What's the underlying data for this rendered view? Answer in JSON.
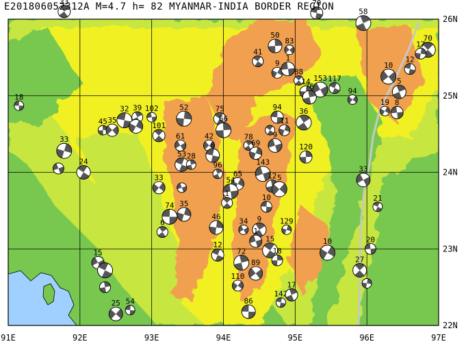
{
  "title": "E201806052312A M=4.7 h= 82 MYANMAR-INDIA BORDER REGION",
  "lon_labels": [
    "91E",
    "92E",
    "93E",
    "94E",
    "95E",
    "96E",
    "97E"
  ],
  "lat_labels": [
    "26N",
    "25N",
    "24N",
    "23N",
    "22N"
  ],
  "lon_range": [
    91,
    97
  ],
  "lat_range": [
    22,
    26
  ],
  "colors": {
    "sea": "#9fd0ff",
    "low": "#78c850",
    "mid": "#c8e640",
    "high": "#f0f020",
    "ridge": "#f0a050",
    "grid": "#000000",
    "river": "#c8c8c8"
  },
  "events": [
    {
      "id": "18",
      "lon": 91.15,
      "lat": 24.87
    },
    {
      "id": "33",
      "lon": 91.78,
      "lat": 26.1
    },
    {
      "id": "33",
      "lon": 91.78,
      "lat": 24.28
    },
    {
      "id": "",
      "lon": 91.7,
      "lat": 24.05
    },
    {
      "id": "24",
      "lon": 92.05,
      "lat": 24.0
    },
    {
      "id": "45",
      "lon": 92.32,
      "lat": 24.55
    },
    {
      "id": "35",
      "lon": 92.45,
      "lat": 24.55
    },
    {
      "id": "32",
      "lon": 92.62,
      "lat": 24.68
    },
    {
      "id": "39",
      "lon": 92.8,
      "lat": 24.72
    },
    {
      "id": "",
      "lon": 92.78,
      "lat": 24.6
    },
    {
      "id": "102",
      "lon": 93.0,
      "lat": 24.72
    },
    {
      "id": "101",
      "lon": 93.1,
      "lat": 24.48
    },
    {
      "id": "52",
      "lon": 93.45,
      "lat": 24.7
    },
    {
      "id": "61",
      "lon": 93.4,
      "lat": 24.35
    },
    {
      "id": "53",
      "lon": 93.42,
      "lat": 24.1
    },
    {
      "id": "28",
      "lon": 93.55,
      "lat": 24.1
    },
    {
      "id": "33",
      "lon": 93.1,
      "lat": 23.8
    },
    {
      "id": "74",
      "lon": 93.25,
      "lat": 23.42
    },
    {
      "id": "6",
      "lon": 93.15,
      "lat": 23.22
    },
    {
      "id": "35",
      "lon": 93.45,
      "lat": 23.45
    },
    {
      "id": "",
      "lon": 93.42,
      "lat": 23.8
    },
    {
      "id": "75",
      "lon": 93.95,
      "lat": 24.7
    },
    {
      "id": "66",
      "lon": 94.0,
      "lat": 24.55
    },
    {
      "id": "42",
      "lon": 93.8,
      "lat": 24.35
    },
    {
      "id": "0",
      "lon": 93.85,
      "lat": 24.22
    },
    {
      "id": "96",
      "lon": 93.92,
      "lat": 23.98
    },
    {
      "id": "65",
      "lon": 94.2,
      "lat": 23.85
    },
    {
      "id": "54",
      "lon": 94.1,
      "lat": 23.75
    },
    {
      "id": "1",
      "lon": 94.05,
      "lat": 23.6
    },
    {
      "id": "46",
      "lon": 93.9,
      "lat": 23.28
    },
    {
      "id": "34",
      "lon": 94.28,
      "lat": 23.25
    },
    {
      "id": "12",
      "lon": 93.92,
      "lat": 22.92
    },
    {
      "id": "72",
      "lon": 94.25,
      "lat": 22.82
    },
    {
      "id": "110",
      "lon": 94.2,
      "lat": 22.52
    },
    {
      "id": "86",
      "lon": 94.35,
      "lat": 22.18
    },
    {
      "id": "78",
      "lon": 94.35,
      "lat": 24.35
    },
    {
      "id": "69",
      "lon": 94.45,
      "lat": 24.25
    },
    {
      "id": "143",
      "lon": 94.55,
      "lat": 23.98
    },
    {
      "id": "41",
      "lon": 94.48,
      "lat": 25.45
    },
    {
      "id": "50",
      "lon": 94.72,
      "lat": 25.65
    },
    {
      "id": "83",
      "lon": 94.92,
      "lat": 25.6
    },
    {
      "id": "70",
      "lon": 95.3,
      "lat": 26.08
    },
    {
      "id": "58",
      "lon": 95.95,
      "lat": 25.95
    },
    {
      "id": "9",
      "lon": 94.75,
      "lat": 25.3
    },
    {
      "id": "1",
      "lon": 94.9,
      "lat": 25.35
    },
    {
      "id": "88",
      "lon": 95.05,
      "lat": 25.2
    },
    {
      "id": "14",
      "lon": 95.15,
      "lat": 25.05
    },
    {
      "id": "153",
      "lon": 95.35,
      "lat": 25.08
    },
    {
      "id": "117",
      "lon": 95.55,
      "lat": 25.1
    },
    {
      "id": "76",
      "lon": 95.2,
      "lat": 24.98
    },
    {
      "id": "94",
      "lon": 95.8,
      "lat": 24.95
    },
    {
      "id": "94",
      "lon": 94.75,
      "lat": 24.72
    },
    {
      "id": "36",
      "lon": 95.12,
      "lat": 24.65
    },
    {
      "id": "11",
      "lon": 94.85,
      "lat": 24.55
    },
    {
      "id": "9",
      "lon": 94.72,
      "lat": 24.35
    },
    {
      "id": "",
      "lon": 94.65,
      "lat": 24.55
    },
    {
      "id": "120",
      "lon": 95.15,
      "lat": 24.2
    },
    {
      "id": "10",
      "lon": 96.3,
      "lat": 25.25
    },
    {
      "id": "12",
      "lon": 96.6,
      "lat": 25.35
    },
    {
      "id": "5",
      "lon": 96.45,
      "lat": 25.05
    },
    {
      "id": "19",
      "lon": 96.25,
      "lat": 24.8
    },
    {
      "id": "8",
      "lon": 96.42,
      "lat": 24.78
    },
    {
      "id": "70",
      "lon": 96.85,
      "lat": 25.6
    },
    {
      "id": "17",
      "lon": 96.75,
      "lat": 25.55
    },
    {
      "id": "33",
      "lon": 95.95,
      "lat": 23.9
    },
    {
      "id": "21",
      "lon": 96.15,
      "lat": 23.55
    },
    {
      "id": "12",
      "lon": 94.68,
      "lat": 23.82
    },
    {
      "id": "5",
      "lon": 94.78,
      "lat": 23.78
    },
    {
      "id": "10",
      "lon": 94.6,
      "lat": 23.55
    },
    {
      "id": "9",
      "lon": 94.5,
      "lat": 23.25
    },
    {
      "id": "129",
      "lon": 94.88,
      "lat": 23.25
    },
    {
      "id": "1",
      "lon": 94.45,
      "lat": 23.1
    },
    {
      "id": "15",
      "lon": 94.65,
      "lat": 22.98
    },
    {
      "id": "18",
      "lon": 94.75,
      "lat": 22.85
    },
    {
      "id": "89",
      "lon": 94.45,
      "lat": 22.68
    },
    {
      "id": "142",
      "lon": 94.8,
      "lat": 22.3
    },
    {
      "id": "17",
      "lon": 94.95,
      "lat": 22.4
    },
    {
      "id": "10",
      "lon": 95.45,
      "lat": 22.95
    },
    {
      "id": "20",
      "lon": 96.05,
      "lat": 23.0
    },
    {
      "id": "27",
      "lon": 95.9,
      "lat": 22.72
    },
    {
      "id": "",
      "lon": 96.0,
      "lat": 22.55
    },
    {
      "id": "15",
      "lon": 92.25,
      "lat": 22.82
    },
    {
      "id": "",
      "lon": 92.35,
      "lat": 22.72
    },
    {
      "id": "",
      "lon": 92.35,
      "lat": 22.5
    },
    {
      "id": "25",
      "lon": 92.5,
      "lat": 22.15
    },
    {
      "id": "54",
      "lon": 92.7,
      "lat": 22.2
    }
  ]
}
